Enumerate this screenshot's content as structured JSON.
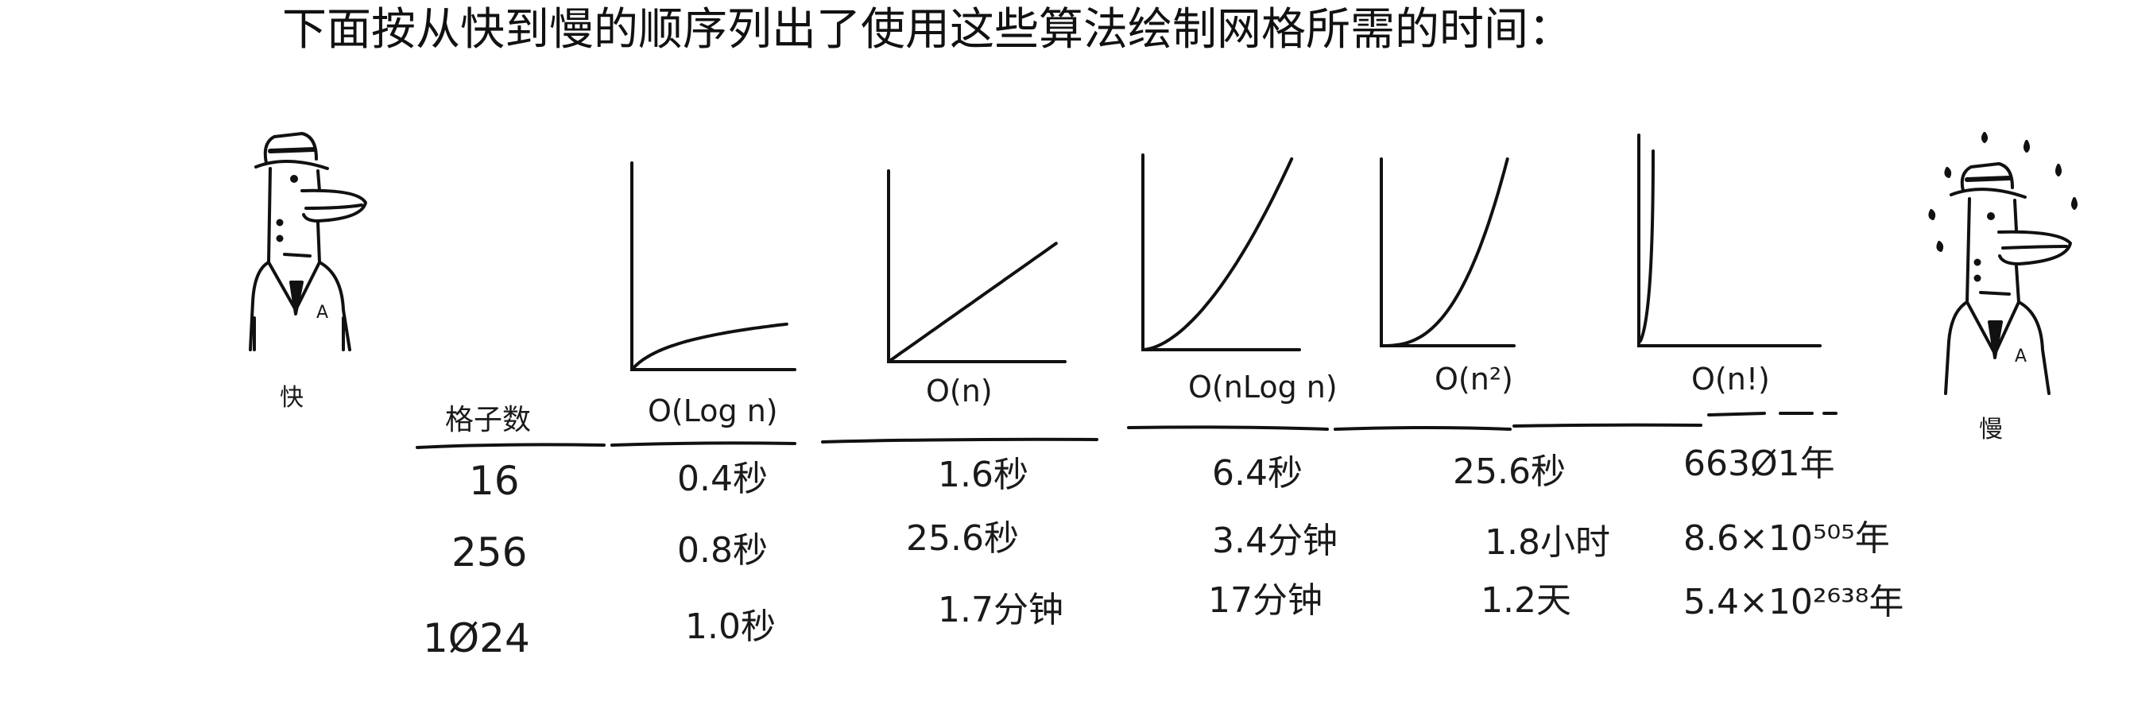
{
  "intro_text": "下面按从快到慢的顺序列出了使用这些算法绘制网格所需的时间：",
  "fast_label": "快",
  "slow_label": "慢",
  "row_header": "格子数",
  "rows": [
    "16",
    "256",
    "1Ø24"
  ],
  "columns": [
    {
      "label": "O(Log n)",
      "curve": "log",
      "times": [
        "0.4秒",
        "0.8秒",
        "1.0秒"
      ]
    },
    {
      "label": "O(n)",
      "curve": "linear",
      "times": [
        "1.6秒",
        "25.6秒",
        "1.7分钟"
      ]
    },
    {
      "label": "O(nLog n)",
      "curve": "nlogn",
      "times": [
        "6.4秒",
        "3.4分钟",
        "17分钟"
      ]
    },
    {
      "label": "O(n²)",
      "curve": "quadratic",
      "times": [
        "25.6秒",
        "1.8小时",
        "1.2天"
      ]
    },
    {
      "label": "O(n!)",
      "curve": "factorial",
      "times": [
        "663Ø1年",
        "8.6×10⁵⁰⁵年",
        "5.4×10²⁶³⁸年"
      ]
    }
  ]
}
